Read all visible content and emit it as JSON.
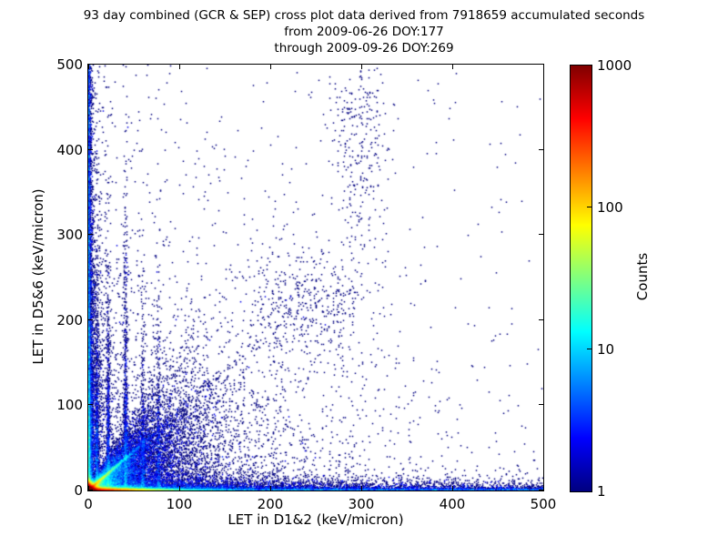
{
  "title": {
    "line1": "93 day combined (GCR & SEP) cross plot data derived from 7918659 accumulated seconds",
    "line2": "from 2009-06-26 DOY:177",
    "line3": "through 2009-09-26 DOY:269"
  },
  "colors": {
    "background": "#ffffff",
    "axis": "#000000",
    "text": "#000000"
  },
  "chart_data": {
    "type": "scatter",
    "subtype": "2d-histogram-density",
    "title": "93 day combined (GCR & SEP) cross plot data derived from 7918659 accumulated seconds from 2009-06-26 DOY:177 through 2009-09-26 DOY:269",
    "xlabel": "LET in D1&2 (keV/micron)",
    "ylabel": "LET in D5&6 (keV/micron)",
    "xlim": [
      0,
      500
    ],
    "ylim": [
      0,
      500
    ],
    "x_ticks": [
      "0",
      "100",
      "200",
      "300",
      "400",
      "500"
    ],
    "y_ticks": [
      "0",
      "100",
      "200",
      "300",
      "400",
      "500"
    ],
    "grid": "off",
    "colorbar": {
      "label": "Counts",
      "scale": "log",
      "min": 1,
      "max": 1000,
      "tick_labels_top_to_bottom": [
        "1000",
        "100",
        "10",
        "1"
      ],
      "tick_fractions_from_top": [
        0,
        0.3333,
        0.6667,
        1
      ],
      "colormap": "jet",
      "gradient_top_to_bottom": [
        {
          "color": "#800000",
          "pos": "0%"
        },
        {
          "color": "#ff0000",
          "pos": "12.5%"
        },
        {
          "color": "#ffff00",
          "pos": "37.5%"
        },
        {
          "color": "#00ffff",
          "pos": "62.5%"
        },
        {
          "color": "#0000ff",
          "pos": "87.5%"
        },
        {
          "color": "#000080",
          "pos": "100%"
        }
      ]
    },
    "density_model": {
      "seed": 1337,
      "grid": 500,
      "log_color_max": 3,
      "marker_px": 1.5,
      "components": [
        {
          "kind": "exp2",
          "n": 60000,
          "mx": 2.4,
          "my": 2.2,
          "note": "hot origin blob ~8000 counts peak"
        },
        {
          "kind": "exp2",
          "n": 30000,
          "mx": 26,
          "my": 1.1,
          "note": "hot band along x-axis, red to x~25, yellow to x~60"
        },
        {
          "kind": "exp2",
          "n": 5200,
          "mx": 260,
          "my": 5.5,
          "note": "speckle above x-axis band"
        },
        {
          "kind": "uxey",
          "n": 3800,
          "my": 1.3,
          "note": "full-width blue band hugging x-axis to 500"
        },
        {
          "kind": "exuy",
          "n": 2400,
          "mx": 1.1,
          "note": "full-height blue column hugging y-axis"
        },
        {
          "kind": "exp2",
          "n": 4000,
          "mx": 1.6,
          "my": 120,
          "note": "denser lower part of y-axis column"
        },
        {
          "kind": "exp2",
          "n": 2400,
          "mx": 6,
          "my": 170,
          "note": "speckle beside y-axis"
        },
        {
          "kind": "diag",
          "n": 4600,
          "mt": 13,
          "clip": 80,
          "slope": 0.92,
          "noise": 0.7,
          "note": "cyan-green diagonal streak from origin"
        },
        {
          "kind": "fan",
          "n": 7200,
          "mt": 30,
          "clip": 135,
          "slope": 1.0,
          "slope_sd": 0.35,
          "noise": 1.0,
          "note": "fan of rays above diagonal"
        },
        {
          "kind": "wedge",
          "n": 12000,
          "mx": 45,
          "pow": 1.6,
          "note": "dense wedge between x-axis and diagonal"
        },
        {
          "kind": "vstreak",
          "n": 900,
          "x": 9.5,
          "sd": 0.9,
          "my": 65,
          "note": "vertical artifact streak"
        },
        {
          "kind": "vstreak",
          "n": 800,
          "x": 22,
          "sd": 0.9,
          "my": 70,
          "note": "vertical artifact streak"
        },
        {
          "kind": "vstreak",
          "n": 1000,
          "x": 41,
          "sd": 1.0,
          "my": 80,
          "note": "vertical artifact streak"
        },
        {
          "kind": "vstreak",
          "n": 420,
          "x": 60,
          "sd": 1.0,
          "my": 55,
          "note": "vertical artifact streak"
        },
        {
          "kind": "vstreak",
          "n": 380,
          "x": 77,
          "sd": 1.1,
          "my": 55,
          "note": "vertical artifact streak"
        },
        {
          "kind": "gauss",
          "n": 430,
          "x": 240,
          "y": 220,
          "sx": 40,
          "sy": 33,
          "note": "diffuse mid-plot cluster"
        },
        {
          "kind": "gauss",
          "n": 170,
          "x": 300,
          "y": 375,
          "sx": 14,
          "sy": 42,
          "note": "vertical cluster upper middle"
        },
        {
          "kind": "gauss",
          "n": 90,
          "x": 295,
          "y": 452,
          "sx": 18,
          "sy": 18,
          "note": "small cluster near top"
        },
        {
          "kind": "exp2",
          "n": 2700,
          "mx": 115,
          "my": 115,
          "note": "sparse background biased to lower-left"
        },
        {
          "kind": "uniform",
          "n": 240,
          "note": "uniform sprinkle over whole plot"
        }
      ]
    }
  }
}
